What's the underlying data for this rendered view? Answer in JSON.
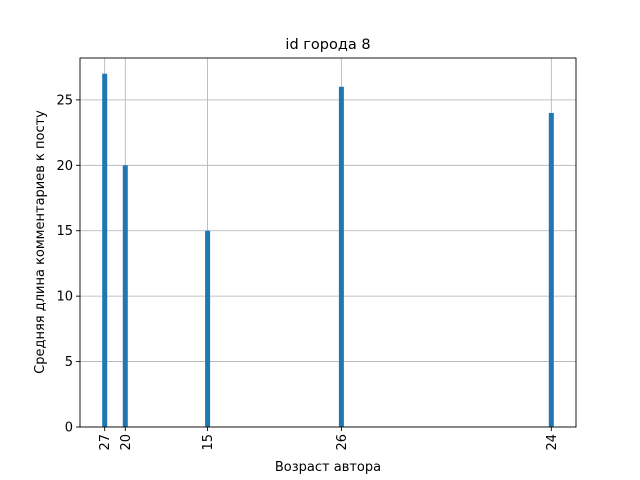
{
  "chart_data": {
    "type": "bar",
    "title": "id города 8",
    "xlabel": "Возраст автора",
    "ylabel": "Средняя длина комментариев к посту",
    "categories": [
      "27",
      "20",
      "15",
      "26",
      "24"
    ],
    "x": [
      0,
      1,
      5,
      11.5,
      21.7
    ],
    "values": [
      27,
      20,
      15,
      26,
      24
    ],
    "xlim": [
      -1.2,
      22.9
    ],
    "ylim": [
      0,
      28.2
    ],
    "yticks": [
      0,
      5,
      10,
      15,
      20,
      25
    ],
    "grid": true,
    "bar_color": "#1f77b4"
  }
}
